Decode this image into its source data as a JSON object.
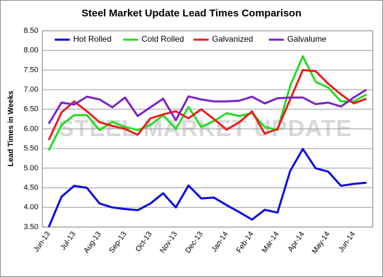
{
  "chart_data": {
    "type": "line",
    "title": "Steel Market Update Lead Times Comparison",
    "y_label": "Lead Times in Weeks",
    "watermark": "STEEL MARKET UPDATE",
    "categories": [
      "Jun-13",
      null,
      "Jul-13",
      null,
      "Aug-13",
      null,
      "Sep-13",
      null,
      "Oct-13",
      null,
      "Nov-13",
      null,
      "Dec-13",
      null,
      "Jan-14",
      null,
      "Feb-14",
      null,
      "Mar-14",
      null,
      "Apr-14",
      null,
      "May-14",
      null,
      "Jun-14",
      null
    ],
    "series": [
      {
        "name": "Hot Rolled",
        "color": "#0a0ae8",
        "values": [
          3.5,
          4.27,
          4.55,
          4.5,
          4.1,
          4.0,
          3.96,
          3.93,
          4.1,
          4.36,
          4.0,
          4.56,
          4.23,
          4.25,
          4.06,
          3.88,
          3.69,
          3.94,
          3.87,
          4.93,
          5.49,
          5.0,
          4.91,
          4.55,
          4.6,
          4.63
        ]
      },
      {
        "name": "Cold Rolled",
        "color": "#22dd22",
        "values": [
          5.45,
          6.1,
          6.35,
          6.35,
          5.97,
          6.18,
          6.05,
          5.97,
          6.1,
          6.35,
          6.0,
          6.56,
          6.05,
          6.2,
          6.4,
          6.33,
          6.4,
          6.05,
          5.97,
          7.1,
          7.85,
          7.2,
          7.05,
          6.7,
          6.7,
          6.88
        ]
      },
      {
        "name": "Galvanized",
        "color": "#ee1c1c",
        "values": [
          5.72,
          6.42,
          6.7,
          6.45,
          6.17,
          6.08,
          6.0,
          5.85,
          6.27,
          6.37,
          6.45,
          6.27,
          6.5,
          6.25,
          5.98,
          6.17,
          6.45,
          5.88,
          6.0,
          6.75,
          7.5,
          7.47,
          7.15,
          6.88,
          6.65,
          6.77
        ]
      },
      {
        "name": "Galvalume",
        "color": "#7a22cc",
        "values": [
          6.13,
          6.67,
          6.62,
          6.82,
          6.75,
          6.55,
          6.8,
          6.33,
          6.55,
          6.77,
          6.22,
          6.83,
          6.75,
          6.7,
          6.7,
          6.72,
          6.82,
          6.65,
          6.78,
          6.8,
          6.8,
          6.63,
          6.67,
          6.57,
          6.8,
          7.0
        ]
      }
    ],
    "ylim": [
      3.5,
      8.5
    ],
    "yticks": [
      {
        "value": 3.5,
        "label": "3.50"
      },
      {
        "value": 4,
        "label": "4.00"
      },
      {
        "value": 4.5,
        "label": "4.50"
      },
      {
        "value": 5,
        "label": "5.00"
      },
      {
        "value": 5.5,
        "label": "5.50"
      },
      {
        "value": 6,
        "label": "6.00"
      },
      {
        "value": 6.5,
        "label": "6.50"
      },
      {
        "value": 7,
        "label": "7.00"
      },
      {
        "value": 7.5,
        "label": "7.50"
      },
      {
        "value": 8,
        "label": "8.00"
      },
      {
        "value": 8.5,
        "label": "8.50"
      }
    ],
    "grid": true,
    "legend": "top"
  }
}
